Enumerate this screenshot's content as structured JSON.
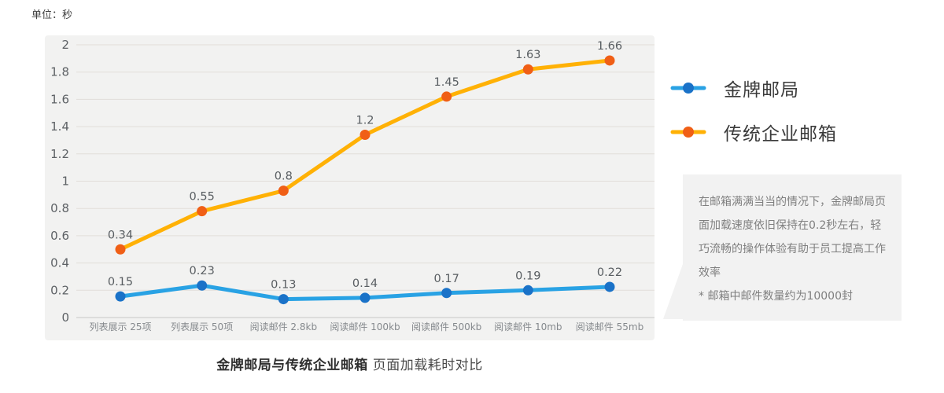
{
  "unit_label": "单位：秒",
  "chart_data": {
    "type": "line",
    "title": "金牌邮局与传统企业邮箱 页面加载耗时对比",
    "xlabel": "",
    "ylabel": "单位：秒",
    "categories": [
      "列表展示 25项",
      "列表展示 50项",
      "阅读邮件 2.8kb",
      "阅读邮件 100kb",
      "阅读邮件 500kb",
      "阅读邮件 10mb",
      "阅读邮件 55mb"
    ],
    "series": [
      {
        "name": "金牌邮局",
        "color": "#29a2e4",
        "marker_color": "#1a72c8",
        "values": [
          0.15,
          0.23,
          0.13,
          0.14,
          0.17,
          0.19,
          0.22
        ],
        "y_plot": [
          0.155,
          0.235,
          0.135,
          0.145,
          0.18,
          0.2,
          0.225
        ]
      },
      {
        "name": "传统企业邮箱",
        "color": "#ffb105",
        "marker_color": "#f05f16",
        "values": [
          0.34,
          0.55,
          0.8,
          1.2,
          1.45,
          1.63,
          1.66
        ],
        "y_plot": [
          0.5,
          0.78,
          0.93,
          1.34,
          1.62,
          1.82,
          1.885
        ]
      }
    ],
    "ylim": [
      0,
      2
    ],
    "ytick_step": 0.2,
    "grid": true,
    "legend_position": "right",
    "panel_bg": "#f2f2f1",
    "gridline_color": "#e1ded9",
    "axis_line_color": "#c8c8c8",
    "tick_label_color": "#5d6165",
    "x_label_color": "#85898d",
    "data_label_color": "#585d61"
  },
  "note_box": {
    "paragraph": "在邮箱满满当当的情况下，金牌邮局页面加载速度依旧保持在0.2秒左右，轻巧流畅的操作体验有助于员工提高工作效率",
    "footnote": "* 邮箱中邮件数量约为10000封"
  },
  "caption": {
    "bold": "金牌邮局与传统企业邮箱",
    "regular": "页面加载耗时对比"
  }
}
